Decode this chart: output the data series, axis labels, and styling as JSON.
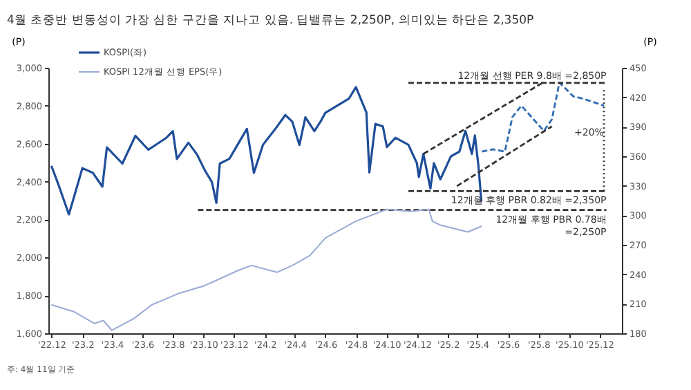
{
  "chart_data": {
    "type": "line",
    "title": "4월 초중반 변동성이 가장 심한 구간을 지나고 있음. 딥밸류는 2,250P, 의미있는 하단은 2,350P",
    "ylabel": "(P)",
    "y2label": "(P)",
    "xlim": [
      "2022-11-25",
      "2026-01-15"
    ],
    "xticks": [
      {
        "value": "2022-12",
        "label": "'22.12"
      },
      {
        "value": "2023-02",
        "label": "'23.2"
      },
      {
        "value": "2023-04",
        "label": "'23.4"
      },
      {
        "value": "2023-06",
        "label": "'23.6"
      },
      {
        "value": "2023-08",
        "label": "'23.8"
      },
      {
        "value": "2023-10",
        "label": "'23.10"
      },
      {
        "value": "2023-12",
        "label": "'23.12"
      },
      {
        "value": "2024-02",
        "label": "'24.2"
      },
      {
        "value": "2024-04",
        "label": "'24.4"
      },
      {
        "value": "2024-06",
        "label": "'24.6"
      },
      {
        "value": "2024-08",
        "label": "'24.8"
      },
      {
        "value": "2024-10",
        "label": "'24.10"
      },
      {
        "value": "2024-12",
        "label": "'24.12"
      },
      {
        "value": "2025-02",
        "label": "'25.2"
      },
      {
        "value": "2025-04",
        "label": "'25.4"
      },
      {
        "value": "2025-06",
        "label": "'25.6"
      },
      {
        "value": "2025-08",
        "label": "'25.8"
      },
      {
        "value": "2025-10",
        "label": "'25.10"
      },
      {
        "value": "2025-12",
        "label": "'25.12"
      }
    ],
    "ylim": [
      1600,
      3000
    ],
    "yticks": [
      {
        "value": 1600,
        "label": "1,600"
      },
      {
        "value": 1800,
        "label": "1,800"
      },
      {
        "value": 2000,
        "label": "2,000"
      },
      {
        "value": 2200,
        "label": "2,200"
      },
      {
        "value": 2400,
        "label": "2,400"
      },
      {
        "value": 2600,
        "label": "2,600"
      },
      {
        "value": 2800,
        "label": "2,800"
      },
      {
        "value": 3000,
        "label": "3,000"
      }
    ],
    "y2lim": [
      180,
      450
    ],
    "y2ticks": [
      180,
      210,
      240,
      270,
      300,
      330,
      360,
      390,
      420,
      450
    ],
    "legend": "top left",
    "grid": false,
    "marker": "none",
    "series": [
      {
        "name": "KOSPI(좌)",
        "color": "#1f4e9a",
        "line_style": "solid",
        "x": [
          "2022-12-01",
          "2022-12-15",
          "2023-01-05",
          "2023-01-20",
          "2023-02-01",
          "2023-02-22",
          "2023-03-13",
          "2023-03-22",
          "2023-04-22",
          "2023-05-18",
          "2023-06-13",
          "2023-07-18",
          "2023-08-01",
          "2023-08-09",
          "2023-09-01",
          "2023-09-18",
          "2023-10-04",
          "2023-10-18",
          "2023-10-27",
          "2023-11-03",
          "2023-11-22",
          "2023-12-27",
          "2024-01-10",
          "2024-01-28",
          "2024-02-22",
          "2024-03-13",
          "2024-03-27",
          "2024-04-10",
          "2024-04-22",
          "2024-05-10",
          "2024-05-22",
          "2024-06-01",
          "2024-07-18",
          "2024-08-01",
          "2024-08-22",
          "2024-08-28",
          "2024-09-09",
          "2024-09-24",
          "2024-10-02",
          "2024-10-19",
          "2024-11-14",
          "2024-12-01",
          "2024-12-05",
          "2024-12-14",
          "2024-12-28",
          "2025-01-04",
          "2025-01-17",
          "2025-02-07",
          "2025-02-24",
          "2025-03-08",
          "2025-03-21",
          "2025-03-27",
          "2025-04-03",
          "2025-04-09"
        ],
        "values": [
          2483,
          2385,
          2227,
          2361,
          2471,
          2446,
          2373,
          2580,
          2495,
          2641,
          2568,
          2629,
          2666,
          2519,
          2605,
          2544,
          2459,
          2398,
          2288,
          2495,
          2520,
          2678,
          2446,
          2593,
          2678,
          2751,
          2715,
          2593,
          2739,
          2666,
          2715,
          2763,
          2837,
          2898,
          2764,
          2448,
          2704,
          2691,
          2582,
          2631,
          2594,
          2497,
          2424,
          2546,
          2363,
          2497,
          2412,
          2533,
          2558,
          2667,
          2546,
          2643,
          2485,
          2295
        ]
      },
      {
        "color": "#2e6db4",
        "line_style": "dashed",
        "x": [
          "2025-04-10",
          "2025-05-02",
          "2025-05-26",
          "2025-06-10",
          "2025-06-28",
          "2025-08-12",
          "2025-08-28",
          "2025-09-12",
          "2025-10-10",
          "2025-10-30",
          "2025-12-10"
        ],
        "values": [
          2558,
          2570,
          2558,
          2740,
          2800,
          2667,
          2728,
          2922,
          2849,
          2837,
          2800
        ]
      },
      {
        "name": "KOSPI 12개월 선행 EPS(우)",
        "color": "#9aaad6",
        "line_style": "solid",
        "axis": "y2",
        "x": [
          "2022-12-01",
          "2023-01-15",
          "2023-02-25",
          "2023-03-15",
          "2023-04-01",
          "2023-05-15",
          "2023-06-20",
          "2023-08-15",
          "2023-10-01",
          "2023-11-01",
          "2023-12-10",
          "2024-01-05",
          "2024-02-25",
          "2024-03-27",
          "2024-05-01",
          "2024-06-01",
          "2024-08-01",
          "2024-10-02",
          "2024-11-20",
          "2024-12-25",
          "2025-01-01",
          "2025-01-17",
          "2025-03-13",
          "2025-04-10"
        ],
        "values": [
          209,
          202,
          190,
          193,
          183,
          195,
          209,
          221,
          228,
          235,
          244,
          249,
          242,
          249,
          259,
          277,
          294,
          306,
          304,
          306,
          294,
          290,
          283,
          289
        ]
      },
      {
        "color": "#333333",
        "line_style": "dashed",
        "x": [
          "2024-11-14",
          "2025-12-15"
        ],
        "values": [
          2920,
          2920
        ]
      },
      {
        "color": "#333333",
        "line_style": "dashed",
        "x": [
          "2024-11-14",
          "2025-12-15"
        ],
        "values": [
          2350,
          2350
        ]
      },
      {
        "color": "#333333",
        "line_style": "dashed",
        "x": [
          "2023-09-20",
          "2025-12-15"
        ],
        "values": [
          2250,
          2250
        ]
      },
      {
        "color": "#333333",
        "line_style": "dashed",
        "x": [
          "2024-12-14",
          "2025-08-10"
        ],
        "values": [
          2546,
          2922
        ]
      },
      {
        "color": "#333333",
        "line_style": "dashed",
        "x": [
          "2025-02-19",
          "2025-08-28"
        ],
        "values": [
          2376,
          2691
        ]
      },
      {
        "color": "#333333",
        "line_style": "dotted",
        "x": [
          "2025-12-10",
          "2025-12-10"
        ],
        "values": [
          2350,
          2890
        ]
      }
    ],
    "annotations": [
      {
        "text": "12개월 선행 PER 9.8배 =2,850P",
        "x": "2025-12-15",
        "y": 2920
      },
      {
        "text": "+20%",
        "x": "2025-12-10",
        "y": 2620
      },
      {
        "text": "12개월 후행 PBR 0.82배 =2,350P",
        "x": "2025-12-15",
        "y": 2350
      },
      {
        "text": "12개월 후행 PBR 0.78배\n=2,250P",
        "x": "2025-12-15",
        "y": 2250
      },
      "주: 4월 11일 기준"
    ]
  }
}
